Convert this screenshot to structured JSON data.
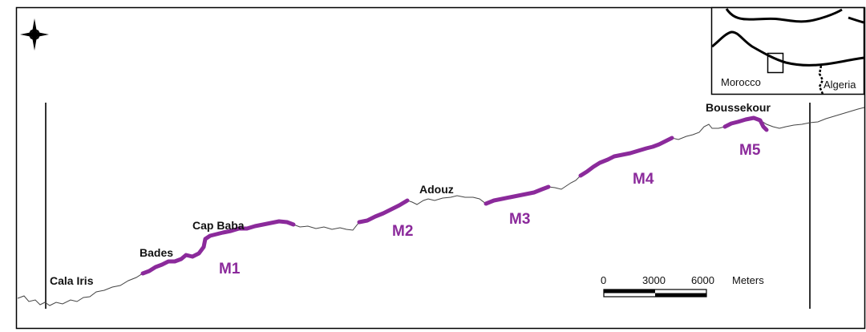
{
  "places": {
    "cala_iris": "Cala Iris",
    "bades": "Bades",
    "cap_baba": "Cap Baba",
    "adouz": "Adouz",
    "boussekour": "Boussekour"
  },
  "segments": {
    "m1": "M1",
    "m2": "M2",
    "m3": "M3",
    "m4": "M4",
    "m5": "M5"
  },
  "inset": {
    "country_left": "Morocco",
    "country_right": "Algeria"
  },
  "scale_bar": {
    "tick_0": "0",
    "tick_1": "3000",
    "tick_2": "6000",
    "unit": "Meters"
  },
  "colors": {
    "highlight": "#8b2a9b",
    "coastline": "#444444",
    "frame": "#000000"
  },
  "icons": {
    "north_arrow": "compass-rose-icon"
  }
}
